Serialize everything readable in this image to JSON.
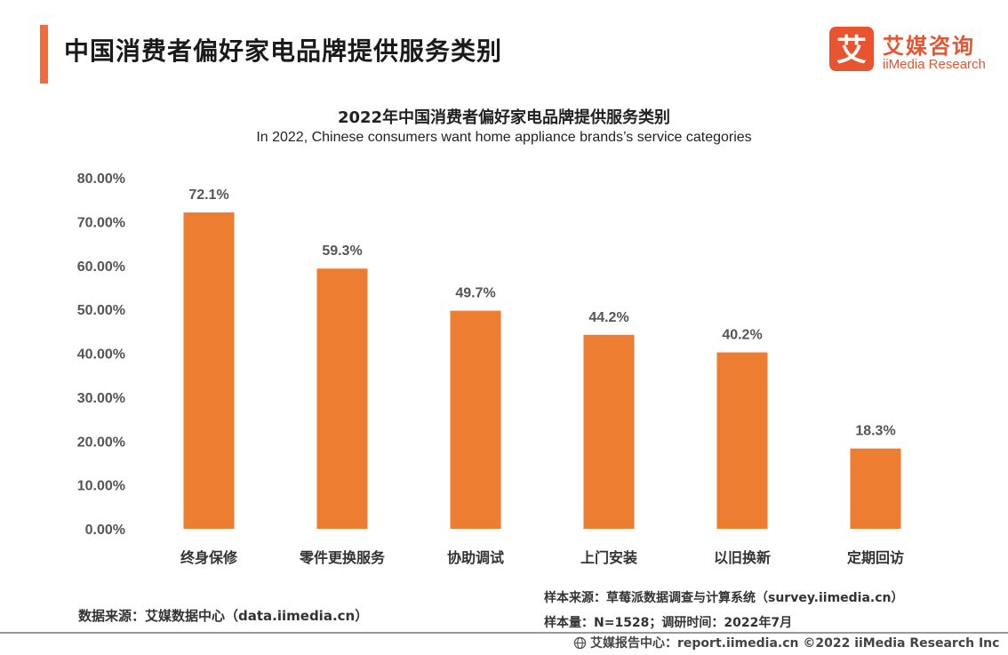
{
  "header": {
    "title": "中国消费者偏好家电品牌提供服务类别",
    "accent_color": "#f26b38"
  },
  "logo": {
    "mark_char": "艾",
    "name_cn": "艾媒咨询",
    "name_en": "iiMedia Research",
    "color": "#e8542f"
  },
  "chart_data": {
    "type": "bar",
    "title": "2022年中国消费者偏好家电品牌提供服务类别",
    "subtitle": "In 2022, Chinese consumers want home appliance brands’s service categories",
    "categories": [
      "终身保修",
      "零件更换服务",
      "协助调试",
      "上门安装",
      "以旧换新",
      "定期回访"
    ],
    "values": [
      72.1,
      59.3,
      49.7,
      44.2,
      40.2,
      18.3
    ],
    "value_labels": [
      "72.1%",
      "59.3%",
      "49.7%",
      "44.2%",
      "40.2%",
      "18.3%"
    ],
    "ylim": [
      0,
      80
    ],
    "yticks": [
      "0.00%",
      "10.00%",
      "20.00%",
      "30.00%",
      "40.00%",
      "50.00%",
      "60.00%",
      "70.00%",
      "80.00%"
    ],
    "bar_color": "#ed7d31",
    "grid": false,
    "xlabel": "",
    "ylabel": ""
  },
  "notes": {
    "data_source": "数据来源：艾媒数据中心（data.iimedia.cn）",
    "sample_source": "样本来源：草莓派数据调查与计算系统（survey.iimedia.cn）",
    "sample_size": "样本量：N=1528；调研时间：2022年7月"
  },
  "footer": {
    "text": "艾媒报告中心：report.iimedia.cn  ©2022  iiMedia Research  Inc"
  }
}
